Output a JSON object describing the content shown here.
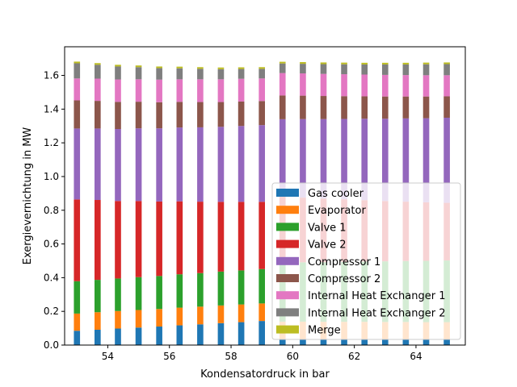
{
  "chart_data": {
    "type": "bar",
    "stacked": true,
    "title": "",
    "xlabel": "Kondensatordruck in bar",
    "ylabel": "Exergievernichtung in MW",
    "xlim": [
      52.6,
      65.6
    ],
    "ylim": [
      0,
      1.77
    ],
    "xticks": [
      54,
      56,
      58,
      60,
      62,
      64
    ],
    "yticks": [
      0.0,
      0.2,
      0.4,
      0.6,
      0.8,
      1.0,
      1.2,
      1.4,
      1.6
    ],
    "grid": false,
    "legend_position": "lower-right",
    "x": [
      53.0,
      53.67,
      54.33,
      55.0,
      55.67,
      56.33,
      57.0,
      57.67,
      58.33,
      59.0,
      59.67,
      60.33,
      61.0,
      61.67,
      62.33,
      63.0,
      63.67,
      64.33,
      65.0
    ],
    "series": [
      {
        "name": "Gas cooler",
        "color": "#1f77b4",
        "values": [
          0.085,
          0.091,
          0.098,
          0.104,
          0.11,
          0.117,
          0.123,
          0.13,
          0.136,
          0.143,
          0.035,
          0.035,
          0.034,
          0.034,
          0.034,
          0.033,
          0.033,
          0.032,
          0.032
        ]
      },
      {
        "name": "Evaporator",
        "color": "#ff7f0e",
        "values": [
          0.102,
          0.104,
          0.104,
          0.104,
          0.104,
          0.105,
          0.105,
          0.105,
          0.105,
          0.104,
          0.104,
          0.104,
          0.104,
          0.104,
          0.104,
          0.104,
          0.104,
          0.104,
          0.104
        ]
      },
      {
        "name": "Valve 1",
        "color": "#2ca02c",
        "values": [
          0.192,
          0.192,
          0.193,
          0.195,
          0.196,
          0.198,
          0.199,
          0.201,
          0.202,
          0.204,
          0.35,
          0.352,
          0.354,
          0.356,
          0.358,
          0.36,
          0.362,
          0.364,
          0.366
        ]
      },
      {
        "name": "Valve 2",
        "color": "#d62728",
        "values": [
          0.485,
          0.474,
          0.46,
          0.452,
          0.442,
          0.433,
          0.424,
          0.414,
          0.407,
          0.399,
          0.391,
          0.384,
          0.377,
          0.371,
          0.364,
          0.358,
          0.352,
          0.347,
          0.342
        ]
      },
      {
        "name": "Compressor 1",
        "color": "#9467bd",
        "values": [
          0.421,
          0.424,
          0.427,
          0.431,
          0.434,
          0.438,
          0.441,
          0.445,
          0.45,
          0.455,
          0.46,
          0.466,
          0.472,
          0.477,
          0.483,
          0.488,
          0.494,
          0.499,
          0.505
        ]
      },
      {
        "name": "Compressor 2",
        "color": "#8c564b",
        "values": [
          0.167,
          0.164,
          0.161,
          0.158,
          0.155,
          0.152,
          0.15,
          0.147,
          0.145,
          0.143,
          0.141,
          0.139,
          0.137,
          0.135,
          0.133,
          0.132,
          0.13,
          0.129,
          0.127
        ]
      },
      {
        "name": "Internal Heat Exchanger 1",
        "color": "#e377c2",
        "values": [
          0.13,
          0.132,
          0.133,
          0.133,
          0.134,
          0.134,
          0.135,
          0.135,
          0.135,
          0.134,
          0.133,
          0.132,
          0.131,
          0.13,
          0.129,
          0.128,
          0.127,
          0.126,
          0.125
        ]
      },
      {
        "name": "Internal Heat Exchanger 2",
        "color": "#7f7f7f",
        "values": [
          0.09,
          0.082,
          0.077,
          0.072,
          0.068,
          0.065,
          0.062,
          0.06,
          0.058,
          0.057,
          0.057,
          0.057,
          0.058,
          0.059,
          0.06,
          0.062,
          0.063,
          0.065,
          0.066
        ]
      },
      {
        "name": "Merge",
        "color": "#bcbd22",
        "values": [
          0.01,
          0.01,
          0.01,
          0.01,
          0.01,
          0.01,
          0.01,
          0.01,
          0.01,
          0.01,
          0.01,
          0.01,
          0.01,
          0.01,
          0.01,
          0.01,
          0.01,
          0.01,
          0.01
        ]
      }
    ]
  }
}
